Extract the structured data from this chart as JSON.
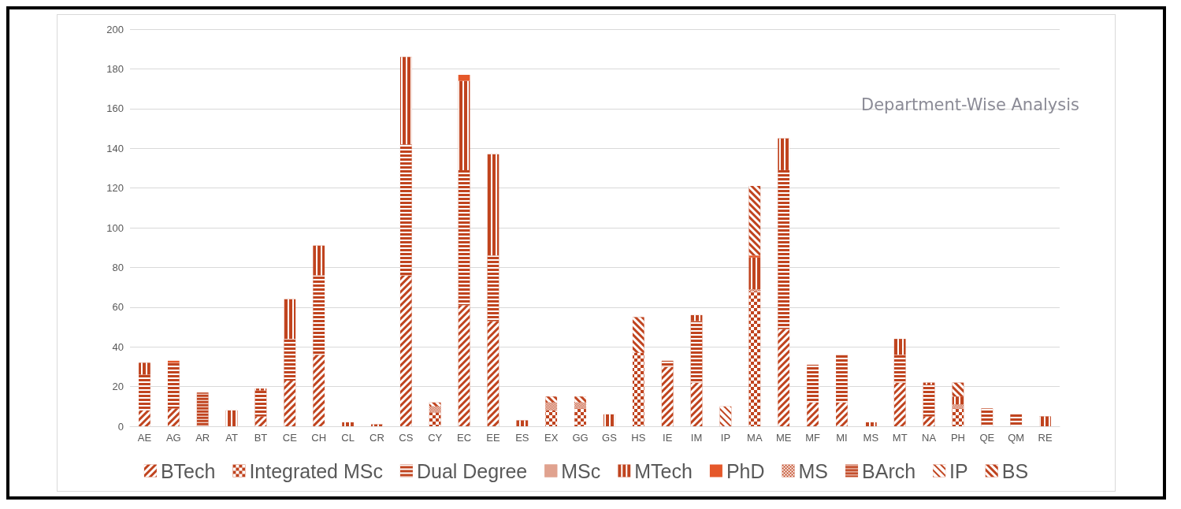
{
  "chart_data": {
    "type": "bar",
    "title": "Department-Wise Analysis",
    "stacked": true,
    "grid": "y",
    "legend": "bottom",
    "categories": [
      "AE",
      "AG",
      "AR",
      "AT",
      "BT",
      "CE",
      "CH",
      "CL",
      "CR",
      "CS",
      "CY",
      "EC",
      "EE",
      "ES",
      "EX",
      "GG",
      "GS",
      "HS",
      "IE",
      "IM",
      "IP",
      "MA",
      "ME",
      "MF",
      "MI",
      "MS",
      "MT",
      "NA",
      "PH",
      "QE",
      "QM",
      "RE"
    ],
    "ylim": [
      0,
      200
    ],
    "yticks": [
      0,
      20,
      40,
      60,
      80,
      100,
      120,
      140,
      160,
      180,
      200
    ],
    "series": [
      {
        "name": "BTech",
        "color": "#c0441f",
        "values": [
          8,
          9,
          null,
          null,
          5,
          23,
          36,
          null,
          null,
          76,
          null,
          61,
          53,
          null,
          null,
          null,
          null,
          null,
          30,
          22,
          null,
          null,
          49,
          12,
          12,
          null,
          22,
          5,
          null,
          null,
          null,
          null
        ]
      },
      {
        "name": "Integrated MSc",
        "color": "#c0441f",
        "values": [
          null,
          null,
          null,
          null,
          null,
          null,
          null,
          null,
          null,
          null,
          7,
          null,
          null,
          null,
          8,
          9,
          null,
          37,
          null,
          null,
          null,
          68,
          null,
          null,
          null,
          null,
          null,
          null,
          9,
          null,
          null,
          null
        ]
      },
      {
        "name": "Dual Degree",
        "color": "#c0441f",
        "values": [
          18,
          23,
          null,
          null,
          13,
          21,
          40,
          null,
          null,
          66,
          null,
          68,
          33,
          null,
          null,
          null,
          null,
          null,
          3,
          31,
          null,
          null,
          80,
          19,
          24,
          null,
          14,
          16,
          null,
          9,
          6,
          null
        ]
      },
      {
        "name": "MSc",
        "color": "#c0441f",
        "values": [
          null,
          null,
          null,
          null,
          null,
          null,
          null,
          null,
          null,
          null,
          3,
          null,
          null,
          null,
          4,
          3,
          null,
          null,
          null,
          null,
          null,
          1,
          null,
          null,
          null,
          null,
          null,
          null,
          2,
          null,
          null,
          null
        ]
      },
      {
        "name": "MTech",
        "color": "#c0441f",
        "values": [
          6,
          null,
          null,
          8,
          1,
          20,
          15,
          2,
          1,
          44,
          null,
          45,
          51,
          3,
          null,
          null,
          6,
          null,
          null,
          3,
          null,
          16,
          16,
          null,
          null,
          2,
          8,
          1,
          4,
          null,
          null,
          5
        ]
      },
      {
        "name": "PhD",
        "color": "#e5582a",
        "values": [
          null,
          1,
          null,
          null,
          null,
          null,
          null,
          null,
          null,
          null,
          null,
          3,
          null,
          null,
          null,
          null,
          null,
          null,
          null,
          null,
          null,
          1,
          null,
          null,
          null,
          null,
          null,
          null,
          null,
          null,
          null,
          null
        ]
      },
      {
        "name": "MS",
        "color": "#c0441f",
        "values": [
          null,
          null,
          null,
          null,
          null,
          null,
          null,
          null,
          null,
          null,
          null,
          null,
          null,
          null,
          null,
          null,
          null,
          null,
          null,
          null,
          null,
          null,
          null,
          null,
          null,
          null,
          null,
          null,
          null,
          null,
          null,
          null
        ]
      },
      {
        "name": "BArch",
        "color": "#c0441f",
        "values": [
          null,
          null,
          17,
          null,
          null,
          null,
          null,
          null,
          null,
          null,
          null,
          null,
          null,
          null,
          null,
          null,
          null,
          null,
          null,
          null,
          null,
          null,
          null,
          null,
          null,
          null,
          null,
          null,
          null,
          null,
          null,
          null
        ]
      },
      {
        "name": "IP",
        "color": "#c0441f",
        "values": [
          null,
          null,
          null,
          null,
          null,
          null,
          null,
          null,
          null,
          null,
          null,
          null,
          null,
          null,
          null,
          null,
          null,
          null,
          null,
          null,
          10,
          null,
          null,
          null,
          null,
          null,
          null,
          null,
          null,
          null,
          null,
          null
        ]
      },
      {
        "name": "BS",
        "color": "#c0441f",
        "values": [
          null,
          null,
          null,
          null,
          null,
          null,
          null,
          null,
          null,
          null,
          2,
          null,
          null,
          null,
          3,
          3,
          null,
          18,
          null,
          null,
          null,
          35,
          null,
          null,
          null,
          null,
          null,
          null,
          7,
          null,
          null,
          null
        ]
      }
    ]
  }
}
